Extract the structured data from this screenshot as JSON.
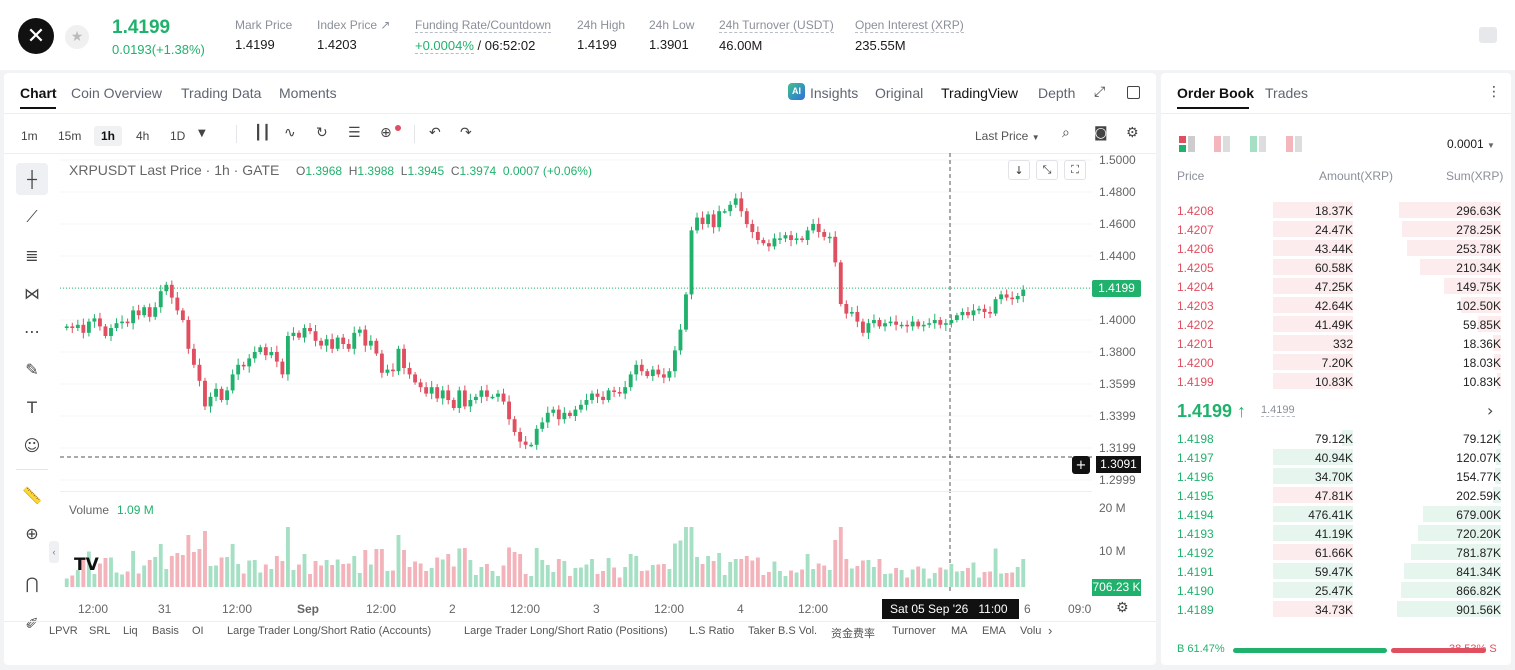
{
  "header": {
    "last_price": "1.4199",
    "change": "0.0193(+1.38%)",
    "stats": [
      {
        "label": "Mark Price",
        "value": "1.4199"
      },
      {
        "label": "Index Price ↗",
        "value": "1.4203"
      },
      {
        "label": "Funding Rate/Countdown",
        "value_pos": "+0.0004%",
        "value": "/ 06:52:02"
      },
      {
        "label": "24h High",
        "value": "1.4199"
      },
      {
        "label": "24h Low",
        "value": "1.3901"
      },
      {
        "label": "24h Turnover (USDT)",
        "value": "46.00M"
      },
      {
        "label": "Open Interest (XRP)",
        "value": "235.55M"
      }
    ]
  },
  "chart_tabs": [
    "Chart",
    "Coin Overview",
    "Trading Data",
    "Moments"
  ],
  "view_tabs": {
    "insights": "Insights",
    "original": "Original",
    "tradingview": "TradingView",
    "depth": "Depth"
  },
  "timeframes": [
    "1m",
    "15m",
    "1h",
    "4h",
    "1D"
  ],
  "last_price_select": "Last Price",
  "legend": {
    "title": "XRPUSDT Last Price · 1h · GATE",
    "o_lbl": "O",
    "o": "1.3968",
    "h_lbl": "H",
    "h": "1.3988",
    "l_lbl": "L",
    "l": "1.3945",
    "c_lbl": "C",
    "c": "1.3974",
    "chg": "0.0007 (+0.06%)"
  },
  "volume_legend": {
    "label": "Volume",
    "value": "1.09 M"
  },
  "tags": {
    "price": "1.4199",
    "crosshair": "1.3091",
    "volume": "706.23 K",
    "date": "Sat 05 Sep '26",
    "time": "11:00"
  },
  "chart_data": {
    "type": "candlestick",
    "y_ticks": [
      "1.5000",
      "1.4800",
      "1.4600",
      "1.4400",
      "1.4000",
      "1.3800",
      "1.3599",
      "1.3399",
      "1.3199",
      "1.2999"
    ],
    "volume_ticks": [
      "20 M",
      "10 M"
    ],
    "x_ticks": [
      "12:00",
      "31",
      "12:00",
      "Sep",
      "12:00",
      "2",
      "12:00",
      "3",
      "12:00",
      "4",
      "12:00",
      "6",
      "09:0"
    ],
    "close": [
      1.396,
      1.395,
      1.397,
      1.392,
      1.399,
      1.401,
      1.396,
      1.39,
      1.395,
      1.398,
      1.399,
      1.398,
      1.406,
      1.403,
      1.408,
      1.402,
      1.408,
      1.418,
      1.422,
      1.414,
      1.406,
      1.4,
      1.382,
      1.372,
      1.362,
      1.346,
      1.352,
      1.357,
      1.35,
      1.356,
      1.366,
      1.372,
      1.371,
      1.376,
      1.38,
      1.383,
      1.378,
      1.38,
      1.374,
      1.366,
      1.39,
      1.392,
      1.389,
      1.395,
      1.393,
      1.387,
      1.384,
      1.388,
      1.382,
      1.389,
      1.385,
      1.382,
      1.392,
      1.394,
      1.384,
      1.387,
      1.379,
      1.367,
      1.369,
      1.368,
      1.382,
      1.37,
      1.366,
      1.361,
      1.358,
      1.354,
      1.358,
      1.351,
      1.356,
      1.35,
      1.345,
      1.356,
      1.346,
      1.35,
      1.352,
      1.356,
      1.352,
      1.352,
      1.354,
      1.349,
      1.338,
      1.33,
      1.324,
      1.322,
      1.322,
      1.332,
      1.336,
      1.342,
      1.344,
      1.338,
      1.342,
      1.34,
      1.344,
      1.347,
      1.35,
      1.354,
      1.352,
      1.35,
      1.356,
      1.355,
      1.354,
      1.358,
      1.366,
      1.372,
      1.368,
      1.365,
      1.369,
      1.366,
      1.364,
      1.368,
      1.381,
      1.394,
      1.416,
      1.456,
      1.464,
      1.46,
      1.466,
      1.458,
      1.468,
      1.468,
      1.472,
      1.476,
      1.468,
      1.46,
      1.455,
      1.45,
      1.448,
      1.446,
      1.451,
      1.451,
      1.453,
      1.45,
      1.451,
      1.45,
      1.456,
      1.46,
      1.455,
      1.452,
      1.452,
      1.436,
      1.41,
      1.404,
      1.405,
      1.399,
      1.392,
      1.398,
      1.4,
      1.396,
      1.398,
      1.399,
      1.397,
      1.397,
      1.396,
      1.399,
      1.396,
      1.397,
      1.398,
      1.4,
      1.397,
      1.398,
      1.4,
      1.403,
      1.405,
      1.403,
      1.406,
      1.407,
      1.405,
      1.404,
      1.413,
      1.416,
      1.414,
      1.413,
      1.415,
      1.419
    ]
  },
  "indicators": [
    "LPVR",
    "SRL",
    "Liq",
    "Basis",
    "OI",
    "Large Trader Long/Short Ratio (Accounts)",
    "Large Trader Long/Short Ratio (Positions)",
    "L.S Ratio",
    "Taker B.S Vol.",
    "资金费率",
    "Turnover",
    "MA",
    "EMA",
    "Volu"
  ],
  "orderbook": {
    "tabs": [
      "Order Book",
      "Trades"
    ],
    "precision": "0.0001",
    "headers": {
      "price": "Price",
      "amount": "Amount(XRP)",
      "sum": "Sum(XRP)"
    },
    "asks": [
      {
        "price": "1.4208",
        "amount": "18.37K",
        "sum": "296.63K",
        "amt_frac": 0.16,
        "sum_frac": 0.98
      },
      {
        "price": "1.4207",
        "amount": "24.47K",
        "sum": "278.25K",
        "amt_frac": 0.16,
        "sum_frac": 0.95
      },
      {
        "price": "1.4206",
        "amount": "43.44K",
        "sum": "253.78K",
        "amt_frac": 0.16,
        "sum_frac": 0.9
      },
      {
        "price": "1.4205",
        "amount": "60.58K",
        "sum": "210.34K",
        "amt_frac": 0.16,
        "sum_frac": 0.78
      },
      {
        "price": "1.4204",
        "amount": "47.25K",
        "sum": "149.75K",
        "amt_frac": 0.16,
        "sum_frac": 0.55
      },
      {
        "price": "1.4203",
        "amount": "42.64K",
        "sum": "102.50K",
        "amt_frac": 0.16,
        "sum_frac": 0.38
      },
      {
        "price": "1.4202",
        "amount": "41.49K",
        "sum": "59.85K",
        "amt_frac": 0.16,
        "sum_frac": 0.22
      },
      {
        "price": "1.4201",
        "amount": "332",
        "sum": "18.36K",
        "amt_frac": 0.16,
        "sum_frac": 0.08
      },
      {
        "price": "1.4200",
        "amount": "7.20K",
        "sum": "18.03K",
        "amt_frac": 0.16,
        "sum_frac": 0.07
      },
      {
        "price": "1.4199",
        "amount": "10.83K",
        "sum": "10.83K",
        "amt_frac": 0.16,
        "sum_frac": 0.04
      }
    ],
    "mid_price": "1.4199 ↑",
    "mid_mark": "1.4199",
    "bids": [
      {
        "price": "1.4198",
        "amount": "79.12K",
        "sum": "79.12K",
        "amt_frac": 0.02,
        "sum_frac": 0.03
      },
      {
        "price": "1.4197",
        "amount": "40.94K",
        "sum": "120.07K",
        "amt_frac": 0.14,
        "sum_frac": 0.05
      },
      {
        "price": "1.4196",
        "amount": "34.70K",
        "sum": "154.77K",
        "amt_frac": 0.14,
        "sum_frac": 0.06
      },
      {
        "price": "1.4195",
        "amount": "47.81K",
        "sum": "202.59K",
        "amt_frac": 0.14,
        "sum_frac": 0.08
      },
      {
        "price": "1.4194",
        "amount": "476.41K",
        "sum": "679.00K",
        "amt_frac": 0.14,
        "sum_frac": 0.75
      },
      {
        "price": "1.4193",
        "amount": "41.19K",
        "sum": "720.20K",
        "amt_frac": 0.14,
        "sum_frac": 0.8
      },
      {
        "price": "1.4192",
        "amount": "61.66K",
        "sum": "781.87K",
        "amt_frac": 0.14,
        "sum_frac": 0.87
      },
      {
        "price": "1.4191",
        "amount": "59.47K",
        "sum": "841.34K",
        "amt_frac": 0.14,
        "sum_frac": 0.93
      },
      {
        "price": "1.4190",
        "amount": "25.47K",
        "sum": "866.82K",
        "amt_frac": 0.14,
        "sum_frac": 0.96
      },
      {
        "price": "1.4189",
        "amount": "34.73K",
        "sum": "901.56K",
        "amt_frac": 0.14,
        "sum_frac": 1.0
      }
    ],
    "buy_ratio": "B 61.47%",
    "sell_ratio": "38.53% S",
    "buy_frac": 0.6147
  },
  "colors": {
    "up": "#20b26c",
    "down": "#e04f5f",
    "up_vol": "#a6e0c4",
    "down_vol": "#f3b3ba"
  }
}
